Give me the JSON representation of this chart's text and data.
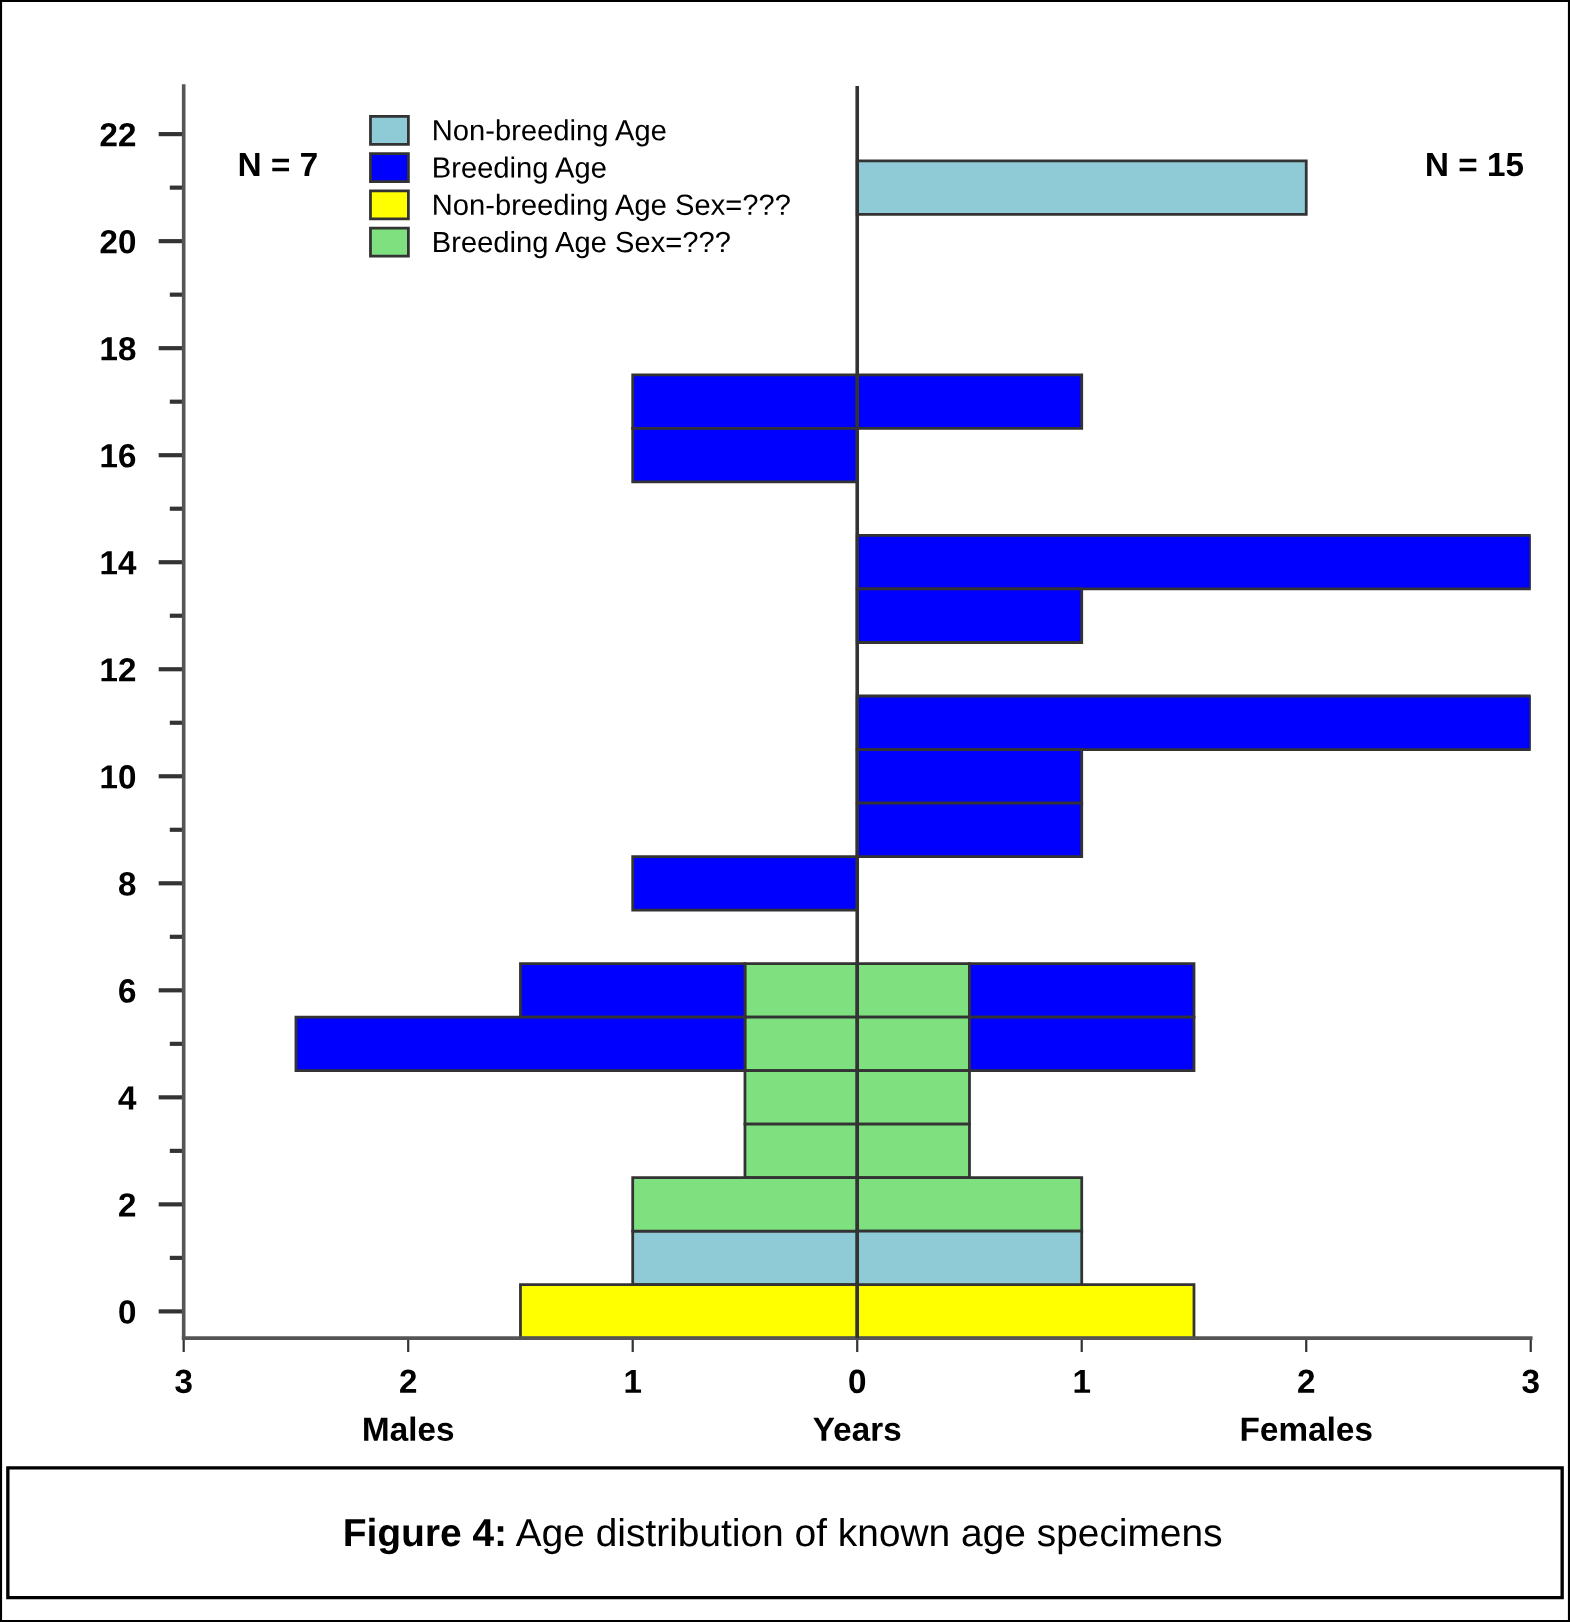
{
  "chart_data": {
    "type": "bar",
    "orientation": "horizontal",
    "stacked": true,
    "title": "Figure 4: Age distribution of known age specimens",
    "xlabel": "Years",
    "annotations": [
      "N = 7",
      "N = 15",
      "Males",
      "Females"
    ],
    "categories": [
      "22",
      null,
      "20",
      null,
      "18",
      null,
      "16",
      null,
      "14",
      null,
      "12",
      null,
      "10",
      null,
      "8",
      null,
      "6",
      null,
      "4",
      null,
      "2",
      null,
      "0"
    ],
    "series": [
      {
        "name": "Non-breeding Age",
        "color": "#8ecbd6",
        "values": [
          null,
          null,
          null,
          null,
          null,
          null,
          null,
          null,
          null,
          null,
          null,
          null,
          null,
          null,
          null,
          null,
          null,
          null,
          null,
          null,
          null,
          -1,
          null
        ]
      },
      {
        "color": "#ffff00",
        "values": [
          null,
          null,
          null,
          null,
          null,
          null,
          null,
          null,
          null,
          null,
          null,
          null,
          null,
          null,
          null,
          null,
          null,
          null,
          null,
          null,
          null,
          null,
          -1.5
        ]
      },
      {
        "color": "#7fe07f",
        "values": [
          null,
          null,
          null,
          null,
          null,
          null,
          null,
          null,
          null,
          null,
          null,
          null,
          null,
          null,
          null,
          null,
          -0.5,
          -0.5,
          -0.5,
          -0.5,
          -1,
          null,
          null
        ]
      },
      {
        "name": "Breeding Age",
        "color": "#0000ff",
        "values": [
          null,
          null,
          null,
          null,
          null,
          -1,
          -1,
          null,
          null,
          null,
          null,
          null,
          null,
          null,
          -1,
          null,
          -1,
          -2,
          null,
          null,
          null,
          null,
          null
        ]
      },
      {
        "name": "Non-breeding Age Sex=???",
        "color": "#ffff00",
        "values": [
          null,
          null,
          null,
          null,
          null,
          null,
          null,
          null,
          null,
          null,
          null,
          null,
          null,
          null,
          null,
          null,
          null,
          null,
          null,
          null,
          null,
          null,
          1.5
        ]
      },
      {
        "name": "Breeding Age Sex=???",
        "color": "#7fe07f",
        "values": [
          null,
          null,
          null,
          null,
          null,
          null,
          null,
          null,
          null,
          null,
          null,
          null,
          null,
          null,
          null,
          null,
          0.5,
          0.5,
          0.5,
          0.5,
          1,
          null,
          null
        ]
      },
      {
        "color": "#8ecbd6",
        "values": [
          null,
          2,
          null,
          null,
          null,
          null,
          null,
          null,
          null,
          null,
          null,
          null,
          null,
          null,
          null,
          null,
          null,
          null,
          null,
          null,
          null,
          1,
          null
        ]
      },
      {
        "color": "#0000ff",
        "values": [
          null,
          null,
          null,
          null,
          null,
          1,
          null,
          null,
          3,
          1,
          null,
          3,
          1,
          1,
          null,
          null,
          1,
          1,
          null,
          null,
          null,
          null,
          null
        ]
      }
    ],
    "xlim": [
      -3,
      3
    ],
    "xticks": [
      {
        "value": -3,
        "label": "3"
      },
      {
        "value": -2,
        "label": "2"
      },
      {
        "value": -1,
        "label": "1"
      },
      0,
      1,
      2,
      3
    ],
    "ref_lines": [
      {
        "axis": "x",
        "value": 0,
        "color": "#333333"
      }
    ],
    "legend": "top left",
    "grid": false
  }
}
